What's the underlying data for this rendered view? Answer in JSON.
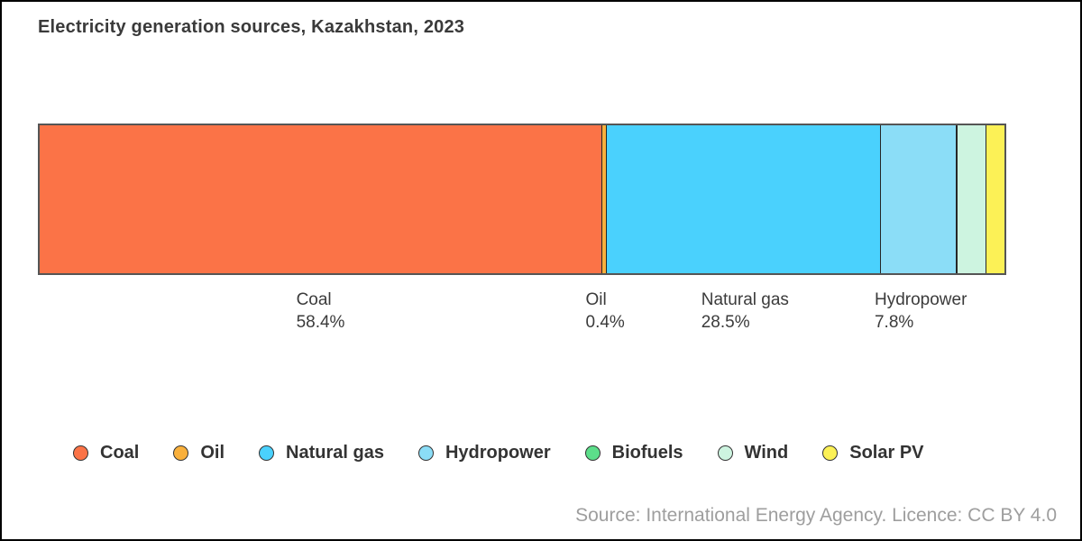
{
  "title": "Electricity generation sources, Kazakhstan, 2023",
  "source": "Source: International Energy Agency. Licence: CC BY 4.0",
  "colors": {
    "bar_outline": "#555555",
    "segment_border": "#262626",
    "title_text": "#3a3a3a",
    "label_text": "#3b3b3b",
    "legend_text": "#333333",
    "source_text": "#9e9e9e",
    "frame_border": "#000000"
  },
  "chart_data": {
    "type": "bar",
    "subtype": "horizontal-stacked-100percent",
    "unit": "%",
    "title": "Electricity generation sources, Kazakhstan, 2023",
    "xlim": [
      0,
      100
    ],
    "grid": false,
    "legend_position": "bottom",
    "series": [
      {
        "name": "Coal",
        "value": 58.4,
        "label": "58.4%",
        "show_label": true,
        "color": "#FB7347"
      },
      {
        "name": "Oil",
        "value": 0.4,
        "label": "0.4%",
        "show_label": true,
        "color": "#F9B03C"
      },
      {
        "name": "Natural gas",
        "value": 28.5,
        "label": "28.5%",
        "show_label": true,
        "color": "#4AD1FD"
      },
      {
        "name": "Hydropower",
        "value": 7.8,
        "label": "7.8%",
        "show_label": true,
        "color": "#8BDDF7"
      },
      {
        "name": "Biofuels",
        "value": 0.03,
        "label": "",
        "show_label": false,
        "color": "#5CDE8A"
      },
      {
        "name": "Wind",
        "value": 3.0,
        "label": "",
        "show_label": false,
        "color": "#CDF4E0"
      },
      {
        "name": "Solar PV",
        "value": 1.9,
        "label": "",
        "show_label": false,
        "color": "#FCF156"
      }
    ],
    "legend": [
      "Coal",
      "Oil",
      "Natural gas",
      "Hydropower",
      "Biofuels",
      "Wind",
      "Solar PV"
    ]
  }
}
